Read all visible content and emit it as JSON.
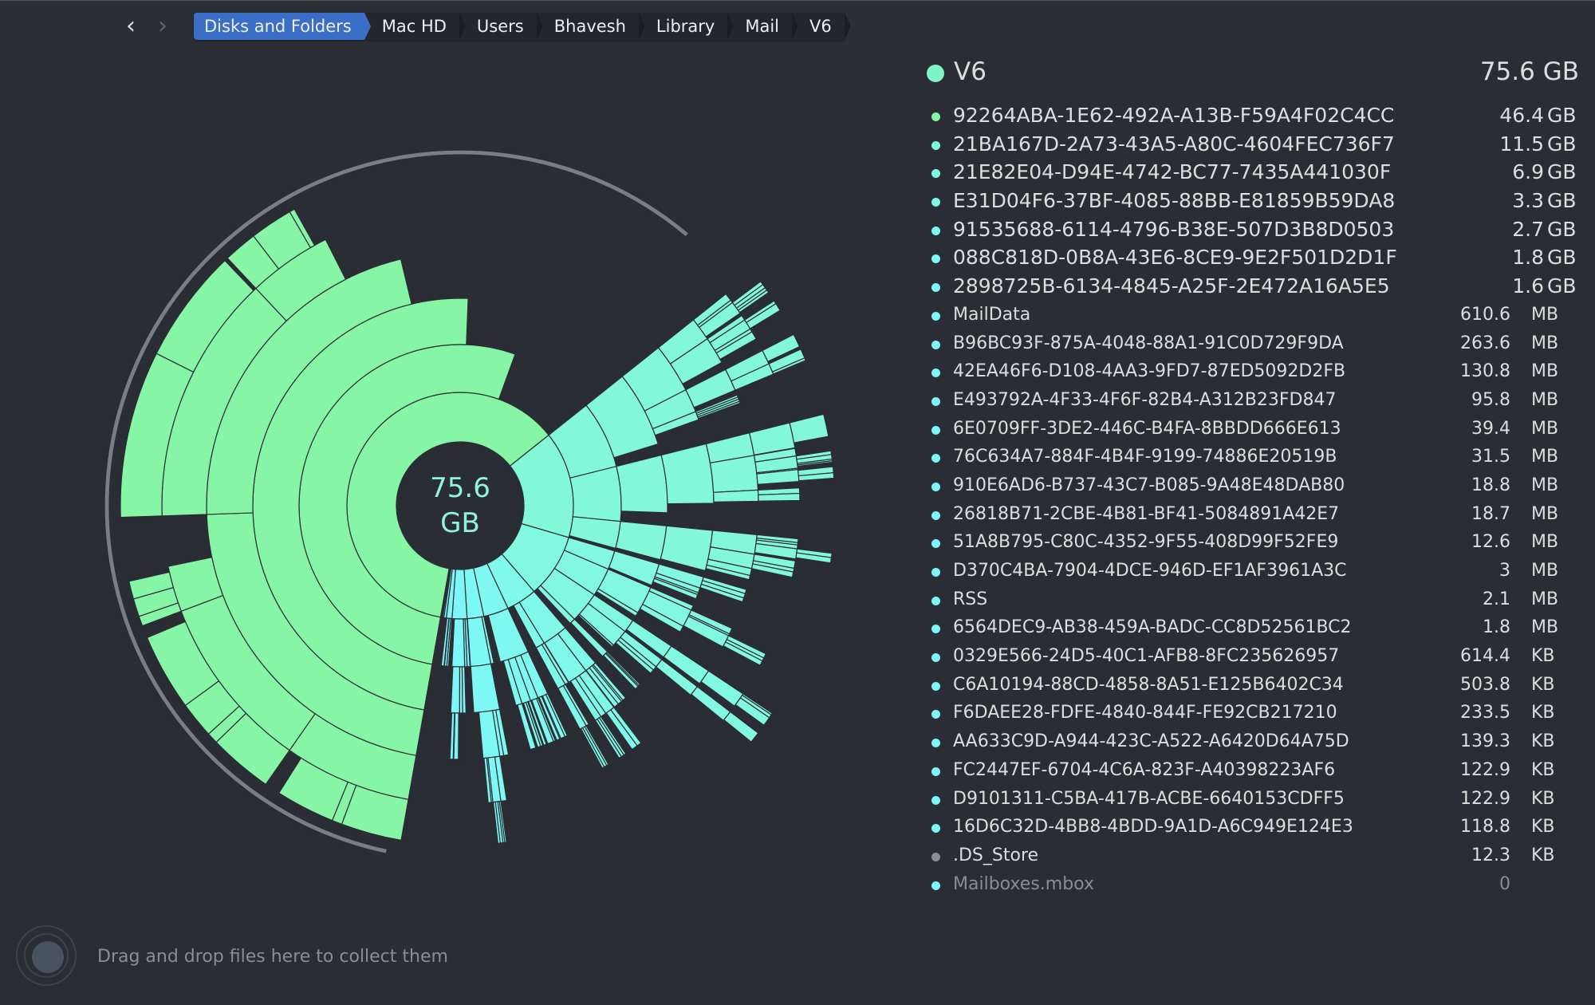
{
  "window": {
    "traffic_lights": {
      "close": "#ff5f57",
      "minimize": "#febc2e",
      "zoom": "#28c840"
    }
  },
  "nav": {
    "back_icon": "chevron-left-icon",
    "forward_icon": "chevron-right-icon"
  },
  "breadcrumb": [
    "Disks and Folders",
    "Mac HD",
    "Users",
    "Bhavesh",
    "Library",
    "Mail",
    "V6"
  ],
  "center": {
    "value": "75.6",
    "unit": "GB"
  },
  "folder": {
    "name": "V6",
    "size": "75.6 GB",
    "color": "#7ef3c4"
  },
  "items": [
    {
      "name": "92264ABA-1E62-492A-A13B-F59A4F02C4CC",
      "num": "46.4",
      "unit": "GB",
      "color": "#86f5a6"
    },
    {
      "name": "21BA167D-2A73-43A5-A80C-4604FEC736F7",
      "num": "11.5",
      "unit": "GB",
      "color": "#82f8d6"
    },
    {
      "name": "21E82E04-D94E-4742-BC77-7435A441030F",
      "num": "6.9",
      "unit": "GB",
      "color": "#82f8e2"
    },
    {
      "name": "E31D04F6-37BF-4085-88BB-E81859B59DA8",
      "num": "3.3",
      "unit": "GB",
      "color": "#80f8ea"
    },
    {
      "name": "91535688-6114-4796-B38E-507D3B8D0503",
      "num": "2.7",
      "unit": "GB",
      "color": "#7ff8f0"
    },
    {
      "name": "088C818D-0B8A-43E6-8CE9-9E2F501D2D1F",
      "num": "1.8",
      "unit": "GB",
      "color": "#7ef8f4"
    },
    {
      "name": "2898725B-6134-4845-A25F-2E472A16A5E5",
      "num": "1.6",
      "unit": "GB",
      "color": "#7ef6f8"
    },
    {
      "name": "MailData",
      "num": "610.6",
      "unit": "MB",
      "color": "#7ef4f8"
    },
    {
      "name": "B96BC93F-875A-4048-88A1-91C0D729F9DA",
      "num": "263.6",
      "unit": "MB",
      "color": "#7ef4f8"
    },
    {
      "name": "42EA46F6-D108-4AA3-9FD7-87ED5092D2FB",
      "num": "130.8",
      "unit": "MB",
      "color": "#7ef4f8"
    },
    {
      "name": "E493792A-4F33-4F6F-82B4-A312B23FD847",
      "num": "95.8",
      "unit": "MB",
      "color": "#7ef4f8"
    },
    {
      "name": "6E0709FF-3DE2-446C-B4FA-8BBDD666E613",
      "num": "39.4",
      "unit": "MB",
      "color": "#7ef4f8"
    },
    {
      "name": "76C634A7-884F-4B4F-9199-74886E20519B",
      "num": "31.5",
      "unit": "MB",
      "color": "#7ef4f8"
    },
    {
      "name": "910E6AD6-B737-43C7-B085-9A48E48DAB80",
      "num": "18.8",
      "unit": "MB",
      "color": "#7ef4f8"
    },
    {
      "name": "26818B71-2CBE-4B81-BF41-5084891A42E7",
      "num": "18.7",
      "unit": "MB",
      "color": "#7ef4f8"
    },
    {
      "name": "51A8B795-C80C-4352-9F55-408D99F52FE9",
      "num": "12.6",
      "unit": "MB",
      "color": "#7ef4f8"
    },
    {
      "name": "D370C4BA-7904-4DCE-946D-EF1AF3961A3C",
      "num": "3",
      "unit": "MB",
      "color": "#7ef4f8"
    },
    {
      "name": "RSS",
      "num": "2.1",
      "unit": "MB",
      "color": "#7ef4f8"
    },
    {
      "name": "6564DEC9-AB38-459A-BADC-CC8D52561BC2",
      "num": "1.8",
      "unit": "MB",
      "color": "#7ef4f8"
    },
    {
      "name": "0329E566-24D5-40C1-AFB8-8FC235626957",
      "num": "614.4",
      "unit": "KB",
      "color": "#7ef4f8"
    },
    {
      "name": "C6A10194-88CD-4858-8A51-E125B6402C34",
      "num": "503.8",
      "unit": "KB",
      "color": "#7ef4f8"
    },
    {
      "name": "F6DAEE28-FDFE-4840-844F-FE92CB217210",
      "num": "233.5",
      "unit": "KB",
      "color": "#7ef4f8"
    },
    {
      "name": "AA633C9D-A944-423C-A522-A6420D64A75D",
      "num": "139.3",
      "unit": "KB",
      "color": "#7ef4f8"
    },
    {
      "name": "FC2447EF-6704-4C6A-823F-A40398223AF6",
      "num": "122.9",
      "unit": "KB",
      "color": "#7ef4f8"
    },
    {
      "name": "D9101311-C5BA-417B-ACBE-6640153CDFF5",
      "num": "122.9",
      "unit": "KB",
      "color": "#7ef4f8"
    },
    {
      "name": "16D6C32D-4BB8-4BDD-9A1D-A6C949E124E3",
      "num": "118.8",
      "unit": "KB",
      "color": "#7ef4f8"
    },
    {
      "name": ".DS_Store",
      "num": "12.3",
      "unit": "KB",
      "color": "#8a8d93"
    },
    {
      "name": "Mailboxes.mbox",
      "num": "0",
      "unit": "",
      "color": "#7ef4f8",
      "dim": true
    }
  ],
  "dropzone": {
    "text": "Drag and drop files here to collect them"
  }
}
